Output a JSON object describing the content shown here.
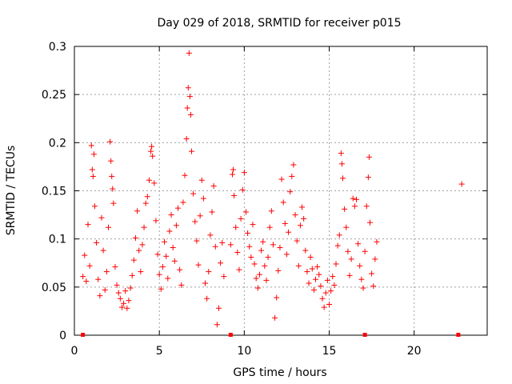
{
  "chart_data": {
    "type": "scatter",
    "title": "Day 029 of 2018, SRMTID for receiver p015",
    "xlabel": "GPS time / hours",
    "ylabel": "SRMTID / TECUs",
    "xlim": [
      0,
      24.3
    ],
    "ylim": [
      0,
      0.3
    ],
    "grid": true,
    "x_ticks": [
      0,
      5,
      10,
      15,
      20
    ],
    "x_tick_labels": [
      "0",
      "5",
      "10",
      "15",
      "20"
    ],
    "y_ticks": [
      0,
      0.05,
      0.1,
      0.15,
      0.2,
      0.25,
      0.3
    ],
    "y_tick_labels": [
      "0",
      "0.05",
      "0.1",
      "0.15",
      "0.2",
      "0.25",
      "0.3"
    ],
    "marker": "+",
    "color": "#ff0000",
    "zero_markers_x": [
      0.5,
      9.2,
      17.1,
      22.6
    ],
    "series": [
      {
        "name": "SRMTID",
        "points": [
          [
            0.5,
            0.061
          ],
          [
            0.6,
            0.083
          ],
          [
            0.7,
            0.056
          ],
          [
            0.8,
            0.115
          ],
          [
            0.9,
            0.072
          ],
          [
            1.0,
            0.197
          ],
          [
            1.05,
            0.172
          ],
          [
            1.1,
            0.165
          ],
          [
            1.15,
            0.188
          ],
          [
            1.2,
            0.134
          ],
          [
            1.3,
            0.096
          ],
          [
            1.4,
            0.058
          ],
          [
            1.5,
            0.041
          ],
          [
            1.6,
            0.122
          ],
          [
            1.7,
            0.088
          ],
          [
            1.8,
            0.047
          ],
          [
            1.9,
            0.066
          ],
          [
            2.0,
            0.112
          ],
          [
            2.1,
            0.201
          ],
          [
            2.15,
            0.181
          ],
          [
            2.2,
            0.165
          ],
          [
            2.25,
            0.152
          ],
          [
            2.3,
            0.137
          ],
          [
            2.4,
            0.071
          ],
          [
            2.5,
            0.052
          ],
          [
            2.6,
            0.044
          ],
          [
            2.7,
            0.038
          ],
          [
            2.8,
            0.029
          ],
          [
            2.9,
            0.033
          ],
          [
            3.0,
            0.046
          ],
          [
            3.1,
            0.028
          ],
          [
            3.2,
            0.036
          ],
          [
            3.3,
            0.049
          ],
          [
            3.4,
            0.062
          ],
          [
            3.5,
            0.078
          ],
          [
            3.6,
            0.101
          ],
          [
            3.7,
            0.129
          ],
          [
            3.8,
            0.088
          ],
          [
            3.9,
            0.066
          ],
          [
            4.0,
            0.094
          ],
          [
            4.1,
            0.112
          ],
          [
            4.2,
            0.137
          ],
          [
            4.3,
            0.144
          ],
          [
            4.4,
            0.161
          ],
          [
            4.5,
            0.191
          ],
          [
            4.55,
            0.196
          ],
          [
            4.6,
            0.186
          ],
          [
            4.7,
            0.158
          ],
          [
            4.8,
            0.119
          ],
          [
            4.9,
            0.084
          ],
          [
            5.0,
            0.063
          ],
          [
            5.1,
            0.048
          ],
          [
            5.2,
            0.071
          ],
          [
            5.3,
            0.097
          ],
          [
            5.4,
            0.082
          ],
          [
            5.5,
            0.059
          ],
          [
            5.6,
            0.108
          ],
          [
            5.7,
            0.125
          ],
          [
            5.8,
            0.091
          ],
          [
            5.9,
            0.077
          ],
          [
            6.0,
            0.114
          ],
          [
            6.1,
            0.132
          ],
          [
            6.2,
            0.068
          ],
          [
            6.3,
            0.052
          ],
          [
            6.4,
            0.138
          ],
          [
            6.5,
            0.166
          ],
          [
            6.6,
            0.204
          ],
          [
            6.65,
            0.236
          ],
          [
            6.7,
            0.257
          ],
          [
            6.75,
            0.293
          ],
          [
            6.8,
            0.248
          ],
          [
            6.85,
            0.229
          ],
          [
            6.9,
            0.191
          ],
          [
            7.0,
            0.147
          ],
          [
            7.1,
            0.118
          ],
          [
            7.2,
            0.098
          ],
          [
            7.3,
            0.073
          ],
          [
            7.4,
            0.124
          ],
          [
            7.5,
            0.161
          ],
          [
            7.6,
            0.142
          ],
          [
            7.7,
            0.054
          ],
          [
            7.8,
            0.038
          ],
          [
            7.9,
            0.066
          ],
          [
            8.0,
            0.104
          ],
          [
            8.1,
            0.128
          ],
          [
            8.2,
            0.155
          ],
          [
            8.3,
            0.092
          ],
          [
            8.4,
            0.011
          ],
          [
            8.5,
            0.028
          ],
          [
            8.6,
            0.075
          ],
          [
            8.7,
            0.096
          ],
          [
            8.8,
            0.061
          ],
          [
            9.2,
            0.094
          ],
          [
            9.3,
            0.167
          ],
          [
            9.35,
            0.172
          ],
          [
            9.4,
            0.145
          ],
          [
            9.5,
            0.112
          ],
          [
            9.6,
            0.086
          ],
          [
            9.7,
            0.068
          ],
          [
            9.8,
            0.121
          ],
          [
            9.9,
            0.151
          ],
          [
            10.0,
            0.169
          ],
          [
            10.1,
            0.128
          ],
          [
            10.2,
            0.106
          ],
          [
            10.3,
            0.092
          ],
          [
            10.4,
            0.081
          ],
          [
            10.5,
            0.115
          ],
          [
            10.6,
            0.074
          ],
          [
            10.7,
            0.059
          ],
          [
            10.8,
            0.049
          ],
          [
            10.9,
            0.063
          ],
          [
            11.0,
            0.088
          ],
          [
            11.1,
            0.097
          ],
          [
            11.2,
            0.072
          ],
          [
            11.3,
            0.057
          ],
          [
            11.4,
            0.081
          ],
          [
            11.5,
            0.112
          ],
          [
            11.6,
            0.129
          ],
          [
            11.7,
            0.094
          ],
          [
            11.8,
            0.018
          ],
          [
            11.9,
            0.039
          ],
          [
            12.0,
            0.067
          ],
          [
            12.1,
            0.091
          ],
          [
            12.2,
            0.162
          ],
          [
            12.3,
            0.138
          ],
          [
            12.4,
            0.116
          ],
          [
            12.5,
            0.084
          ],
          [
            12.6,
            0.107
          ],
          [
            12.7,
            0.149
          ],
          [
            12.8,
            0.165
          ],
          [
            12.9,
            0.177
          ],
          [
            13.0,
            0.125
          ],
          [
            13.1,
            0.098
          ],
          [
            13.2,
            0.072
          ],
          [
            13.3,
            0.114
          ],
          [
            13.4,
            0.133
          ],
          [
            13.5,
            0.121
          ],
          [
            13.6,
            0.088
          ],
          [
            13.7,
            0.066
          ],
          [
            13.8,
            0.054
          ],
          [
            13.9,
            0.081
          ],
          [
            14.0,
            0.069
          ],
          [
            14.1,
            0.047
          ],
          [
            14.2,
            0.058
          ],
          [
            14.3,
            0.071
          ],
          [
            14.4,
            0.063
          ],
          [
            14.5,
            0.051
          ],
          [
            14.6,
            0.038
          ],
          [
            14.7,
            0.029
          ],
          [
            14.8,
            0.044
          ],
          [
            14.9,
            0.057
          ],
          [
            15.0,
            0.032
          ],
          [
            15.1,
            0.046
          ],
          [
            15.2,
            0.061
          ],
          [
            15.3,
            0.052
          ],
          [
            15.4,
            0.074
          ],
          [
            15.5,
            0.093
          ],
          [
            15.6,
            0.104
          ],
          [
            15.7,
            0.189
          ],
          [
            15.75,
            0.178
          ],
          [
            15.8,
            0.163
          ],
          [
            15.9,
            0.131
          ],
          [
            16.0,
            0.112
          ],
          [
            16.1,
            0.087
          ],
          [
            16.2,
            0.062
          ],
          [
            16.3,
            0.079
          ],
          [
            16.4,
            0.142
          ],
          [
            16.5,
            0.134
          ],
          [
            16.6,
            0.141
          ],
          [
            16.7,
            0.095
          ],
          [
            16.8,
            0.072
          ],
          [
            16.9,
            0.058
          ],
          [
            17.0,
            0.049
          ],
          [
            17.1,
            0.087
          ],
          [
            17.2,
            0.134
          ],
          [
            17.3,
            0.164
          ],
          [
            17.35,
            0.185
          ],
          [
            17.4,
            0.117
          ],
          [
            17.5,
            0.064
          ],
          [
            17.6,
            0.051
          ],
          [
            17.7,
            0.079
          ],
          [
            17.8,
            0.097
          ],
          [
            22.8,
            0.157
          ]
        ]
      }
    ]
  }
}
